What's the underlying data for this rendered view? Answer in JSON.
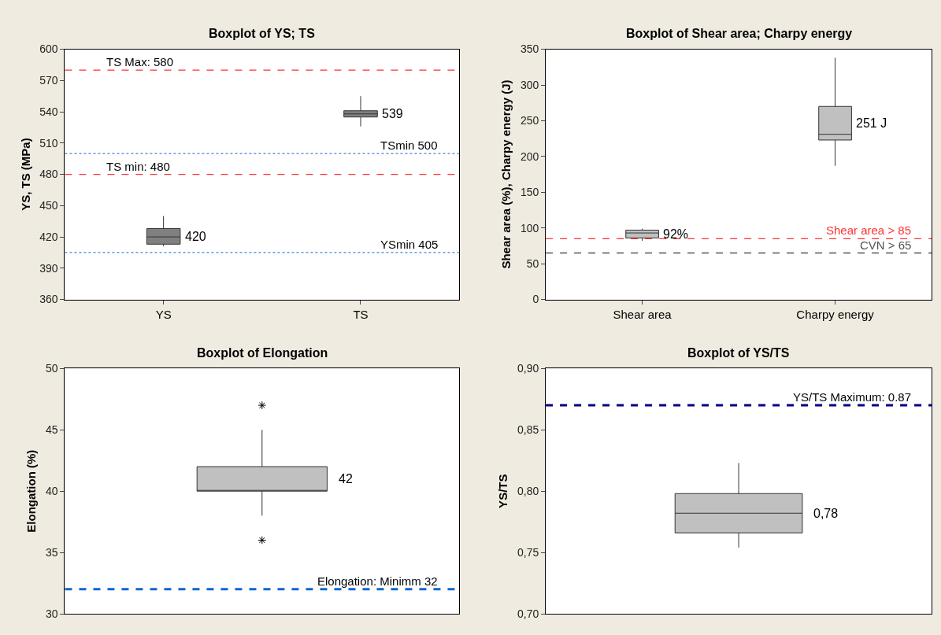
{
  "chart_data": [
    {
      "type": "box",
      "title": "Boxplot of YS; TS",
      "ylabel": "YS, TS (MPa)",
      "categories": [
        "YS",
        "TS"
      ],
      "ylim": [
        360,
        600
      ],
      "yticks": [
        360,
        390,
        420,
        450,
        480,
        510,
        540,
        570,
        600
      ],
      "series": [
        {
          "color": "#808080",
          "boxes": [
            {
              "low": 411,
              "q1": 413,
              "median": 420,
              "q3": 428,
              "high": 440
            },
            {
              "low": 526,
              "q1": 535,
              "median": 538,
              "q3": 541,
              "high": 555
            }
          ]
        }
      ],
      "ref_lines": [
        {
          "axis": "y",
          "value": 580,
          "label": "TS Max: 580",
          "color": "#ff3333",
          "line_style": "dashed"
        },
        {
          "axis": "y",
          "value": 500,
          "label": "TSmin 500",
          "color": "#3388dd",
          "line_style": "dotted"
        },
        {
          "axis": "y",
          "value": 480,
          "label": "TS min: 480",
          "color": "#ff3333",
          "line_style": "dashed"
        },
        {
          "axis": "y",
          "value": 405,
          "label": "YSmin 405",
          "color": "#3388dd",
          "line_style": "dotted"
        }
      ],
      "annotations": [
        "420",
        "539"
      ]
    },
    {
      "type": "box",
      "title": "Boxplot of Shear area; Charpy energy",
      "ylabel": "Shear area (%), Charpy energy (J)",
      "categories": [
        "Shear area",
        "Charpy energy"
      ],
      "ylim": [
        0,
        350
      ],
      "yticks": [
        0,
        50,
        100,
        150,
        200,
        250,
        300,
        350
      ],
      "series": [
        {
          "color": "#c0c0c0",
          "boxes": [
            {
              "low": 82,
              "q1": 86,
              "median": 93,
              "q3": 97,
              "high": 99
            },
            {
              "low": 187,
              "q1": 223,
              "median": 231,
              "q3": 270,
              "high": 338
            }
          ]
        }
      ],
      "ref_lines": [
        {
          "axis": "y",
          "value": 85,
          "label": "Shear area > 85",
          "color": "#ff3333",
          "line_style": "dashed"
        },
        {
          "axis": "y",
          "value": 65,
          "label": "CVN > 65",
          "color": "#555555",
          "line_style": "dashed"
        }
      ],
      "annotations": [
        "92%",
        "251 J"
      ]
    },
    {
      "type": "box",
      "title": "Boxplot of Elongation",
      "ylabel": "Elongation (%)",
      "categories": [
        null
      ],
      "ylim": [
        30,
        50
      ],
      "yticks": [
        30,
        35,
        40,
        45,
        50
      ],
      "tick_labels": "y",
      "marker": "star",
      "series": [
        {
          "color": "#c0c0c0",
          "boxes": [
            {
              "low": 38,
              "q1": 40,
              "median": 40,
              "q3": 42,
              "high": 45,
              "outliers": [
                47,
                36
              ]
            }
          ]
        }
      ],
      "ref_lines": [
        {
          "axis": "y",
          "value": 32,
          "label": "Elongation: Minimm 32",
          "color": "#1166cc",
          "line_style": "dashed"
        }
      ],
      "annotations": [
        "42"
      ]
    },
    {
      "type": "box",
      "title": "Boxplot of YS/TS",
      "ylabel": "YS/TS",
      "categories": [
        null
      ],
      "ylim": [
        0.7,
        0.9
      ],
      "tick_labels": "y",
      "yticks": [
        {
          "value": 0.7,
          "label": "0,70"
        },
        {
          "value": 0.75,
          "label": "0,75"
        },
        {
          "value": 0.8,
          "label": "0,80"
        },
        {
          "value": 0.85,
          "label": "0,85"
        },
        {
          "value": 0.9,
          "label": "0,90"
        }
      ],
      "series": [
        {
          "color": "#c0c0c0",
          "boxes": [
            {
              "low": 0.754,
              "q1": 0.766,
              "median": 0.782,
              "q3": 0.798,
              "high": 0.823
            }
          ]
        }
      ],
      "ref_lines": [
        {
          "axis": "y",
          "value": 0.87,
          "label": "YS/TS Maximum: 0.87",
          "color": "#000080",
          "line_style": "dashed"
        }
      ],
      "annotations": [
        "0,78"
      ]
    }
  ]
}
